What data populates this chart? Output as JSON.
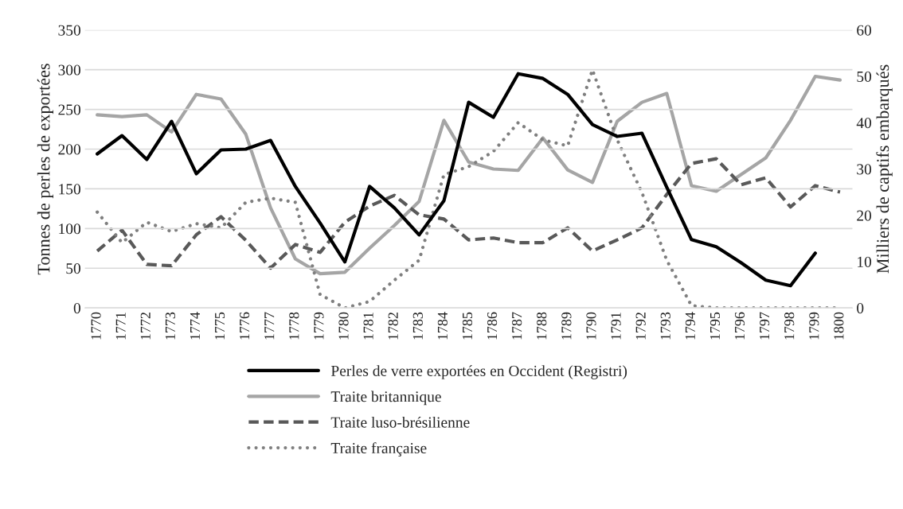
{
  "chart_data": {
    "type": "line",
    "ylabel": "Tonnes de perles de exportées",
    "y2label": "Milliers de captifs embarqués",
    "categories": [
      "1770",
      "1771",
      "1772",
      "1773",
      "1774",
      "1775",
      "1776",
      "1777",
      "1778",
      "1779",
      "1780",
      "1781",
      "1782",
      "1783",
      "1784",
      "1785",
      "1786",
      "1787",
      "1788",
      "1789",
      "1790",
      "1791",
      "1792",
      "1793",
      "1794",
      "1795",
      "1796",
      "1797",
      "1798",
      "1799",
      "1800"
    ],
    "ylim": [
      0,
      350
    ],
    "yticks": [
      0,
      50,
      100,
      150,
      200,
      250,
      300,
      350
    ],
    "y2lim": [
      0,
      60
    ],
    "y2ticks": [
      0,
      10,
      20,
      30,
      40,
      50,
      60
    ],
    "grid": "y",
    "legend": "bottom",
    "marker": "none",
    "series": [
      {
        "name": "Perles de verre exportées en Occident (Registri)",
        "color": "#000000",
        "line_style": "solid",
        "values": [
          194,
          217,
          187,
          235,
          169,
          199,
          200,
          211,
          153,
          107,
          58,
          153,
          126,
          92,
          135,
          259,
          240,
          295,
          289,
          269,
          231,
          216,
          220,
          152,
          86,
          77,
          57,
          35,
          28,
          69,
          null
        ]
      },
      {
        "name": "Traite britannique",
        "color": "#a5a5a5",
        "line_style": "solid",
        "axis": "y2",
        "values": [
          41.7,
          41.3,
          41.7,
          38,
          46.1,
          45.1,
          37.5,
          21.6,
          10.6,
          7.4,
          7.7,
          12.9,
          17.8,
          23,
          40.5,
          31.5,
          30,
          29.7,
          36.7,
          29.8,
          27.1,
          40.3,
          44.4,
          46.3,
          26.4,
          25.2,
          28.8,
          32.4,
          40.5,
          50,
          49.2
        ]
      },
      {
        "name": "Traite luso-brésilienne",
        "color": "#595959",
        "line_style": "dashed",
        "axis": "y2",
        "values": [
          12.3,
          16.8,
          9.4,
          9.1,
          15.8,
          19.7,
          14.6,
          8.6,
          13.7,
          12,
          18.5,
          22,
          24.3,
          20.1,
          19.2,
          14.7,
          15.1,
          14.1,
          14.1,
          17.3,
          12.3,
          14.7,
          17.3,
          24.5,
          31.2,
          32.2,
          26.6,
          28.1,
          21.8,
          26.4,
          25
        ]
      },
      {
        "name": "Traite française",
        "color": "#7f7f7f",
        "line_style": "dotted",
        "axis": "y2",
        "values": [
          20.7,
          14.1,
          18.5,
          16.5,
          18.2,
          17.3,
          22.8,
          23.7,
          22.8,
          2.9,
          0,
          1.4,
          6,
          10.3,
          28.8,
          30.5,
          33.8,
          40,
          36.3,
          35,
          51.4,
          36.3,
          24.9,
          10.3,
          0.5,
          0,
          0,
          0,
          0,
          0,
          0
        ]
      }
    ]
  }
}
